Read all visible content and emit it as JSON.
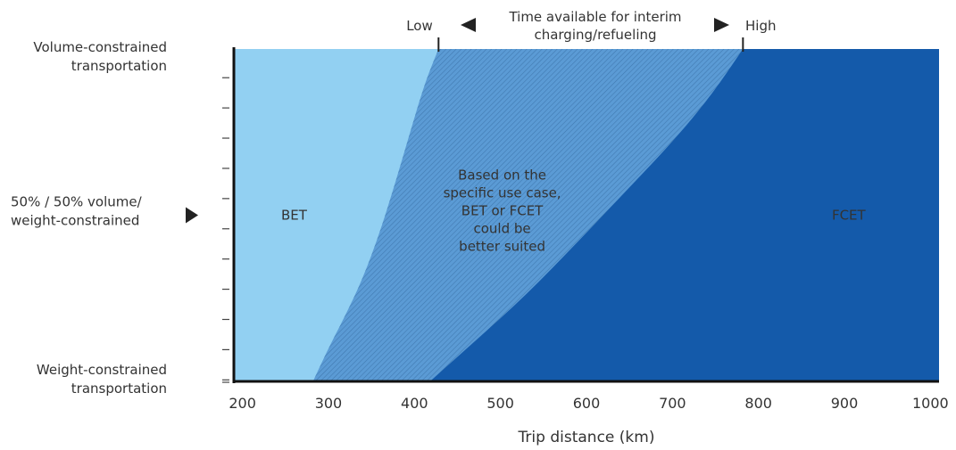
{
  "chart_data": {
    "type": "area",
    "title": "",
    "xlabel": "Trip distance (km)",
    "ylabel": "",
    "xlim": [
      190,
      1010
    ],
    "ylim": [
      0,
      1
    ],
    "x_ticks": [
      "200",
      "300",
      "400",
      "500",
      "600",
      "700",
      "800",
      "900",
      "1000"
    ],
    "y_category_labels": [
      {
        "lines": [
          "Volume-constrained",
          "transportation"
        ],
        "value": 1.0
      },
      {
        "lines": [
          "50% / 50% volume/",
          "weight-constrained"
        ],
        "value": 0.5
      },
      {
        "lines": [
          "Weight-constrained",
          "transportation"
        ],
        "value": 0.0
      }
    ],
    "series": [
      {
        "name": "BET",
        "color": "#92d0f2",
        "boundary_x_at_y": [
          [
            282,
            0
          ],
          [
            300,
            0.1
          ],
          [
            320,
            0.2
          ],
          [
            340,
            0.31
          ],
          [
            360,
            0.45
          ],
          [
            378,
            0.6
          ],
          [
            395,
            0.75
          ],
          [
            410,
            0.88
          ],
          [
            420,
            0.95
          ],
          [
            428,
            1
          ]
        ]
      },
      {
        "name": "FCET",
        "color": "#145aaa",
        "boundary_x_at_y": [
          [
            418,
            0
          ],
          [
            470,
            0.12
          ],
          [
            530,
            0.26
          ],
          [
            590,
            0.42
          ],
          [
            645,
            0.57
          ],
          [
            700,
            0.72
          ],
          [
            745,
            0.86
          ],
          [
            782,
            1
          ]
        ]
      }
    ],
    "overlap_region": {
      "color": "#5b9bd5",
      "text_lines": [
        "Based on the",
        "specific use case,",
        "BET or FCET",
        "could be",
        "better suited"
      ]
    },
    "region_labels": [
      "BET",
      "FCET"
    ],
    "top_annotation": {
      "low": "Low",
      "high": "High",
      "lines": [
        "Time available for interim",
        "charging/refueling"
      ],
      "low_x": 428,
      "high_x": 782
    },
    "y_minor_tick_count": 11,
    "grid": false
  },
  "colors": {
    "axis": "#111111",
    "text": "#333333",
    "bet": "#92d0f2",
    "fcet": "#145aaa",
    "overlap": "#5b9bd5",
    "hatch": "#2c5f93"
  }
}
